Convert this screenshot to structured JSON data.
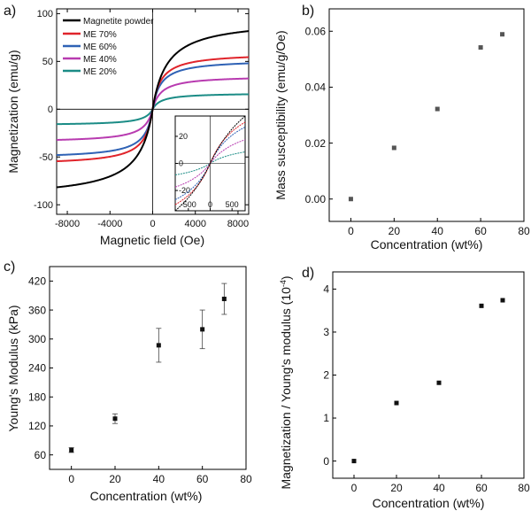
{
  "chart_data": [
    {
      "panel": "a)",
      "type": "line",
      "xlabel": "Magnetic field (Oe)",
      "ylabel": "Magnetization (emu/g)",
      "xlim": [
        -9000,
        9000
      ],
      "ylim": [
        -110,
        105
      ],
      "xticks": [
        -8000,
        -4000,
        0,
        4000,
        8000
      ],
      "yticks": [
        -100,
        -50,
        0,
        50,
        100
      ],
      "x_tick_labels": [
        "-8000",
        "-4000",
        "0",
        "4000",
        "8000"
      ],
      "y_tick_labels": [
        "-100",
        "-50",
        "0",
        "50",
        "100"
      ],
      "legend_position": "top-left",
      "series": [
        {
          "name": "Magnetite powder",
          "color": "#000000",
          "saturation": 94,
          "knee_oe": 1350
        },
        {
          "name": "ME 70%",
          "color": "#e0242b",
          "saturation": 59,
          "knee_oe": 750
        },
        {
          "name": "ME 60%",
          "color": "#2f62b5",
          "saturation": 52,
          "knee_oe": 750
        },
        {
          "name": "ME 40%",
          "color": "#b83bb0",
          "saturation": 35,
          "knee_oe": 800
        },
        {
          "name": "ME 20%",
          "color": "#1b8c86",
          "saturation": 17,
          "knee_oe": 800
        }
      ],
      "inset": {
        "xlim": [
          -800,
          800
        ],
        "ylim": [
          -35,
          35
        ],
        "xticks": [
          -500,
          0,
          500
        ],
        "yticks": [
          -20,
          0,
          20
        ],
        "x_tick_labels": [
          "-500",
          "0",
          "500"
        ],
        "y_tick_labels": [
          "-20",
          "0",
          "20"
        ]
      }
    },
    {
      "panel": "b)",
      "type": "scatter",
      "xlabel": "Concentration (wt%)",
      "ylabel": "Mass susceptibility (emu/g/Oe)",
      "xlim": [
        -10,
        80
      ],
      "ylim": [
        -0.008,
        0.068
      ],
      "xticks": [
        0,
        20,
        40,
        60,
        80
      ],
      "yticks": [
        0,
        0.02,
        0.04,
        0.06
      ],
      "x_tick_labels": [
        "0",
        "20",
        "40",
        "60",
        "80"
      ],
      "y_tick_labels": [
        "0.00",
        "0.02",
        "0.04",
        "0.06"
      ],
      "marker_color": "#555555",
      "x": [
        0,
        20,
        40,
        60,
        70
      ],
      "y": [
        0.0,
        0.0183,
        0.0322,
        0.0542,
        0.0589
      ]
    },
    {
      "panel": "c)",
      "type": "scatter",
      "xlabel": "Concentration (wt%)",
      "ylabel": "Young's Modulus (kPa)",
      "xlim": [
        -10,
        80
      ],
      "ylim": [
        30,
        450
      ],
      "xticks": [
        0,
        20,
        40,
        60,
        80
      ],
      "yticks": [
        60,
        120,
        180,
        240,
        300,
        360,
        420
      ],
      "x_tick_labels": [
        "0",
        "20",
        "40",
        "60",
        "80"
      ],
      "y_tick_labels": [
        "60",
        "120",
        "180",
        "240",
        "300",
        "360",
        "420"
      ],
      "marker_color": "#111111",
      "x": [
        0,
        20,
        40,
        60,
        70
      ],
      "y": [
        70,
        135,
        287,
        320,
        383
      ],
      "error": [
        5,
        10,
        35,
        40,
        32
      ]
    },
    {
      "panel": "d)",
      "type": "scatter",
      "xlabel": "Concentration (wt%)",
      "ylabel": "Magnetization / Young's modulus (10",
      "ylabel_sup": "-4",
      "ylabel_end": ")",
      "xlim": [
        -10,
        80
      ],
      "ylim": [
        -0.4,
        4.4
      ],
      "xticks": [
        0,
        20,
        40,
        60,
        80
      ],
      "yticks": [
        0,
        1,
        2,
        3,
        4
      ],
      "x_tick_labels": [
        "0",
        "20",
        "40",
        "60",
        "80"
      ],
      "y_tick_labels": [
        "0",
        "1",
        "2",
        "3",
        "4"
      ],
      "marker_color": "#111111",
      "x": [
        0,
        20,
        40,
        60,
        70
      ],
      "y": [
        0.0,
        1.35,
        1.82,
        3.61,
        3.74
      ]
    }
  ]
}
